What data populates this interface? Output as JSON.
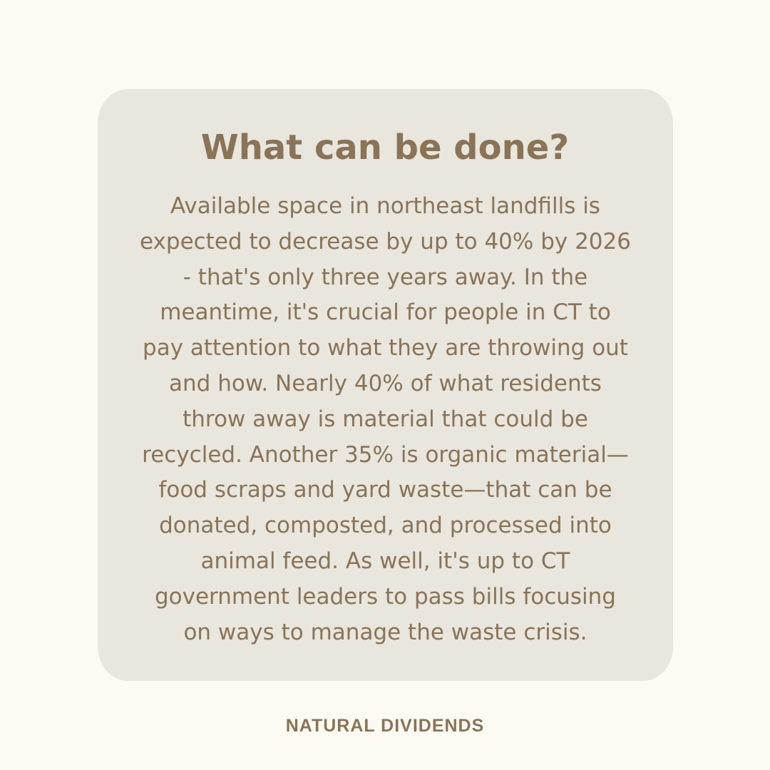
{
  "card": {
    "title": "What can be done?",
    "body_lines": [
      "Available space in northeast landfills is",
      "expected to decrease by up to 40% by 2026",
      "- that's only three years away. In the",
      "meantime, it's crucial for people in CT to",
      "pay attention to what they are throwing out",
      "and how. Nearly 40% of what residents",
      "throw away is material that could be",
      "recycled. Another 35% is organic material—",
      "food scraps and yard waste—that can be",
      "donated, composted, and processed into",
      "animal feed. As well, it's up to CT",
      "government leaders to pass bills focusing",
      "on ways to manage the waste crisis."
    ]
  },
  "footer": {
    "brand": "NATURAL DIVIDENDS"
  }
}
